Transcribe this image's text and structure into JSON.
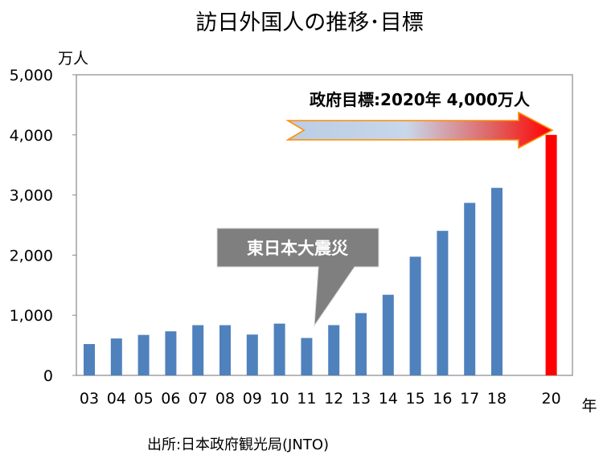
{
  "chart_data": {
    "type": "bar",
    "title": "訪日外国人の推移･目標",
    "y_unit": "万人",
    "x_unit": "年",
    "ylim": [
      0,
      5000
    ],
    "y_ticks": [
      "0",
      "1,000",
      "2,000",
      "3,000",
      "4,000",
      "5,000"
    ],
    "categories": [
      "03",
      "04",
      "05",
      "06",
      "07",
      "08",
      "09",
      "10",
      "11",
      "12",
      "13",
      "14",
      "15",
      "16",
      "17",
      "18",
      "20"
    ],
    "values": [
      521,
      614,
      673,
      733,
      835,
      835,
      679,
      861,
      622,
      836,
      1036,
      1341,
      1974,
      2404,
      2869,
      3119,
      4000
    ],
    "colors": {
      "actual": "#4f81bd",
      "target": "#ff0000",
      "callout": "#7f7f7f"
    },
    "annotations": {
      "target_label": "政府目標:2020年 4,000万人",
      "earthquake_label": "東日本大震災"
    },
    "source": "出所:日本政府観光局(JNTO)",
    "grid": false
  }
}
